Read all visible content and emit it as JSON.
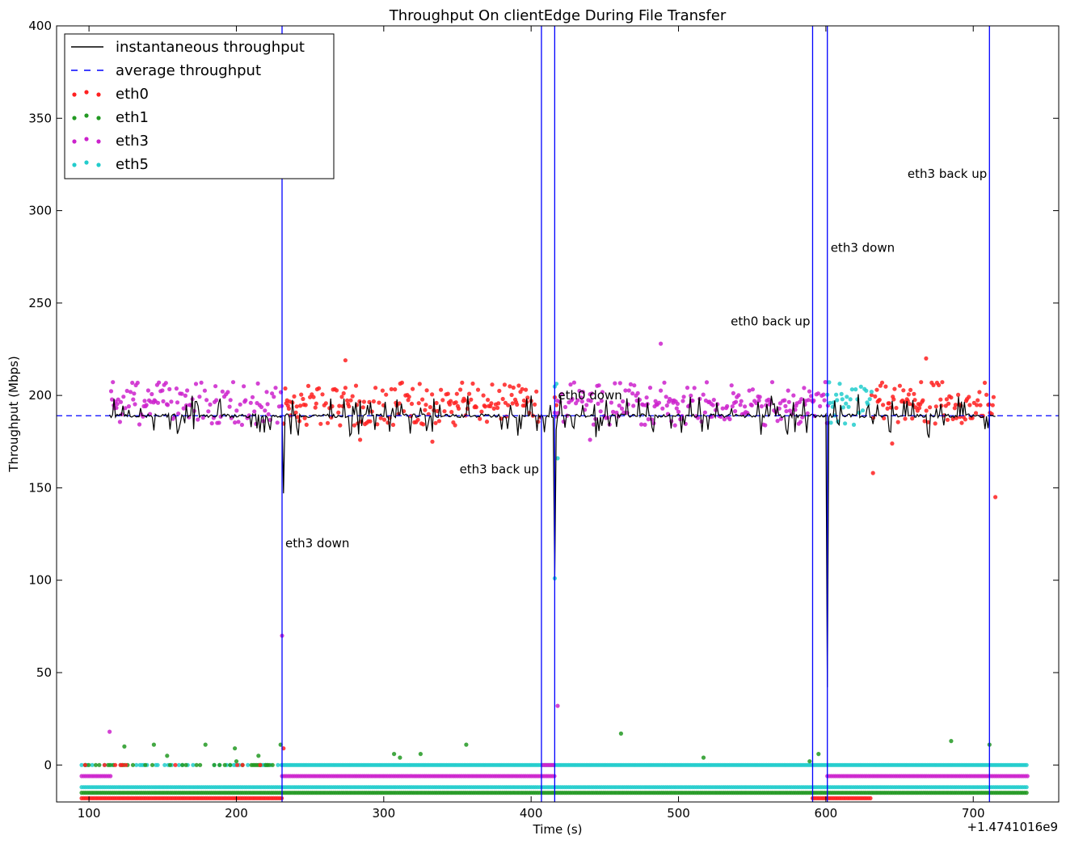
{
  "chart_data": {
    "type": "scatter",
    "title": "Throughput On clientEdge During File Transfer",
    "xlabel": "Time (s)",
    "ylabel": "Throughput (Mbps)",
    "x_offset_label": "+1.4741016e9",
    "xlim": [
      78,
      758
    ],
    "ylim": [
      -20,
      400
    ],
    "xticks": [
      100,
      200,
      300,
      400,
      500,
      600,
      700
    ],
    "yticks": [
      0,
      50,
      100,
      150,
      200,
      250,
      300,
      350,
      400
    ],
    "grid": false,
    "legend": {
      "placement": "top-left",
      "entries": [
        {
          "label": "instantaneous throughput",
          "style": "solid-line",
          "color": "#000000"
        },
        {
          "label": "average throughput",
          "style": "dashed-line",
          "color": "#0000ff"
        },
        {
          "label": "eth0",
          "style": "dots",
          "color": "#ff2020"
        },
        {
          "label": "eth1",
          "style": "dots",
          "color": "#229922"
        },
        {
          "label": "eth3",
          "style": "dots",
          "color": "#cc22cc"
        },
        {
          "label": "eth5",
          "style": "dots",
          "color": "#22cccc"
        }
      ]
    },
    "average_throughput": 189,
    "event_lines": [
      {
        "x": 231,
        "label": "eth3 down",
        "label_y": 120,
        "align": "left"
      },
      {
        "x": 407,
        "label": "eth3 back up",
        "label_y": 160,
        "align": "right"
      },
      {
        "x": 416,
        "label": "eth0 down",
        "label_y": 200,
        "align": "left"
      },
      {
        "x": 591,
        "label": "eth0 back up",
        "label_y": 240,
        "align": "right"
      },
      {
        "x": 601,
        "label": "eth3 down",
        "label_y": 280,
        "align": "left"
      },
      {
        "x": 711,
        "label": "eth3 back up",
        "label_y": 320,
        "align": "right"
      }
    ],
    "series": [
      {
        "name": "eth0",
        "color": "#ff2020",
        "high_band_segments": [
          [
            232,
            407
          ],
          [
            416,
            418
          ],
          [
            631,
            715
          ]
        ],
        "idle_segments": [
          [
            95,
            231
          ],
          [
            591,
            631
          ]
        ],
        "outliers": [
          [
            274,
            219
          ],
          [
            284,
            176
          ],
          [
            333,
            175
          ],
          [
            668,
            220
          ],
          [
            632,
            158
          ],
          [
            645,
            174
          ],
          [
            715,
            145
          ],
          [
            232,
            9
          ]
        ]
      },
      {
        "name": "eth1",
        "color": "#229922",
        "high_band_segments": [],
        "idle_segments": [
          [
            95,
            737
          ]
        ],
        "outliers": [
          [
            124,
            10
          ],
          [
            144,
            11
          ],
          [
            153,
            5
          ],
          [
            179,
            11
          ],
          [
            199,
            9
          ],
          [
            200,
            2
          ],
          [
            215,
            5
          ],
          [
            230,
            11
          ],
          [
            307,
            6
          ],
          [
            311,
            4
          ],
          [
            325,
            6
          ],
          [
            356,
            11
          ],
          [
            461,
            17
          ],
          [
            517,
            4
          ],
          [
            589,
            2
          ],
          [
            595,
            6
          ],
          [
            685,
            13
          ],
          [
            711,
            11
          ]
        ]
      },
      {
        "name": "eth3",
        "color": "#cc22cc",
        "high_band_segments": [
          [
            115,
            231
          ],
          [
            416,
            601
          ]
        ],
        "idle_segments": [
          [
            95,
            115
          ],
          [
            231,
            416
          ],
          [
            601,
            737
          ]
        ],
        "outliers": [
          [
            114,
            18
          ],
          [
            231,
            70
          ],
          [
            418,
            32
          ],
          [
            488,
            228
          ],
          [
            440,
            176
          ]
        ]
      },
      {
        "name": "eth5",
        "color": "#22cccc",
        "high_band_segments": [
          [
            416,
            418
          ],
          [
            601,
            632
          ]
        ],
        "idle_segments": [
          [
            95,
            737
          ]
        ],
        "outliers": [
          [
            416,
            101
          ],
          [
            418,
            166
          ]
        ]
      }
    ],
    "instantaneous_throughput": {
      "color": "#000000",
      "x_range": [
        114,
        715
      ],
      "baseline": 189,
      "dips": [
        [
          232,
          147
        ],
        [
          416,
          100
        ],
        [
          601,
          42
        ]
      ]
    }
  }
}
